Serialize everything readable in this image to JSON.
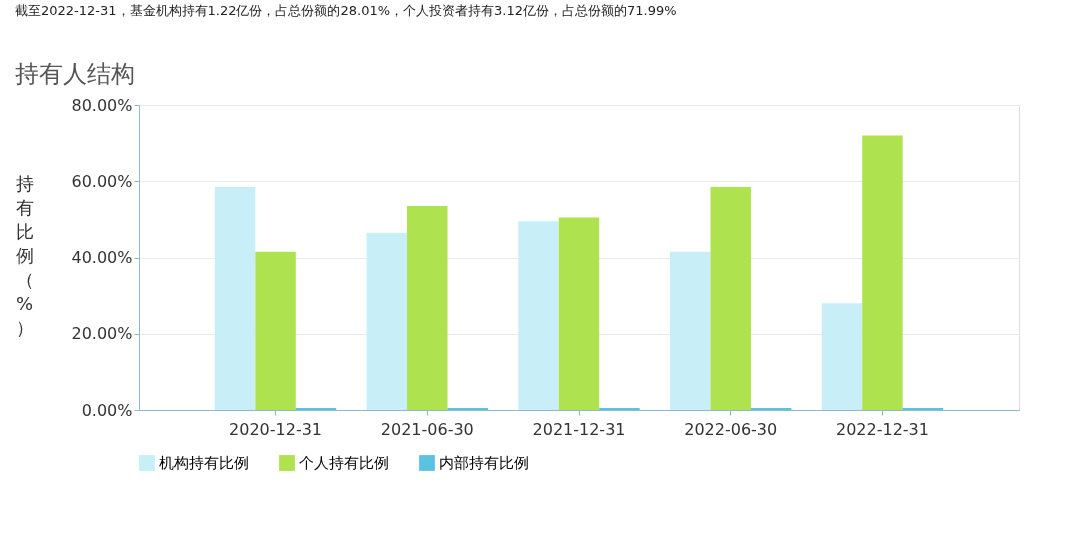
{
  "chart_data": {
    "type": "bar",
    "title": "持有人结构",
    "ylabel": "持有比例（%）",
    "annotations": [
      "截至2022-12-31，基金机构持有1.22亿份，占总份额的28.01%，个人投资者持有3.12亿份，占总份额的71.99%"
    ],
    "categories": [
      "2020-12-31",
      "2021-06-30",
      "2021-12-31",
      "2022-06-30",
      "2022-12-31"
    ],
    "series": [
      {
        "name": "机构持有比例",
        "color": "#c8eef8",
        "values": [
          58.5,
          46.5,
          49.5,
          41.5,
          28.01
        ]
      },
      {
        "name": "个人持有比例",
        "color": "#aee24e",
        "values": [
          41.5,
          53.5,
          50.5,
          58.5,
          71.99
        ]
      },
      {
        "name": "内部持有比例",
        "color": "#5cc2e2",
        "values": [
          0.5,
          0.5,
          0.5,
          0.5,
          0.5
        ]
      }
    ],
    "ylim": [
      0,
      80
    ],
    "yticks": [
      {
        "value": 0,
        "label": "0.00%"
      },
      {
        "value": 20,
        "label": "20.00%"
      },
      {
        "value": 40,
        "label": "40.00%"
      },
      {
        "value": 60,
        "label": "60.00%"
      },
      {
        "value": 80,
        "label": "80.00%"
      }
    ],
    "grid": "y",
    "legend": "bottom"
  }
}
